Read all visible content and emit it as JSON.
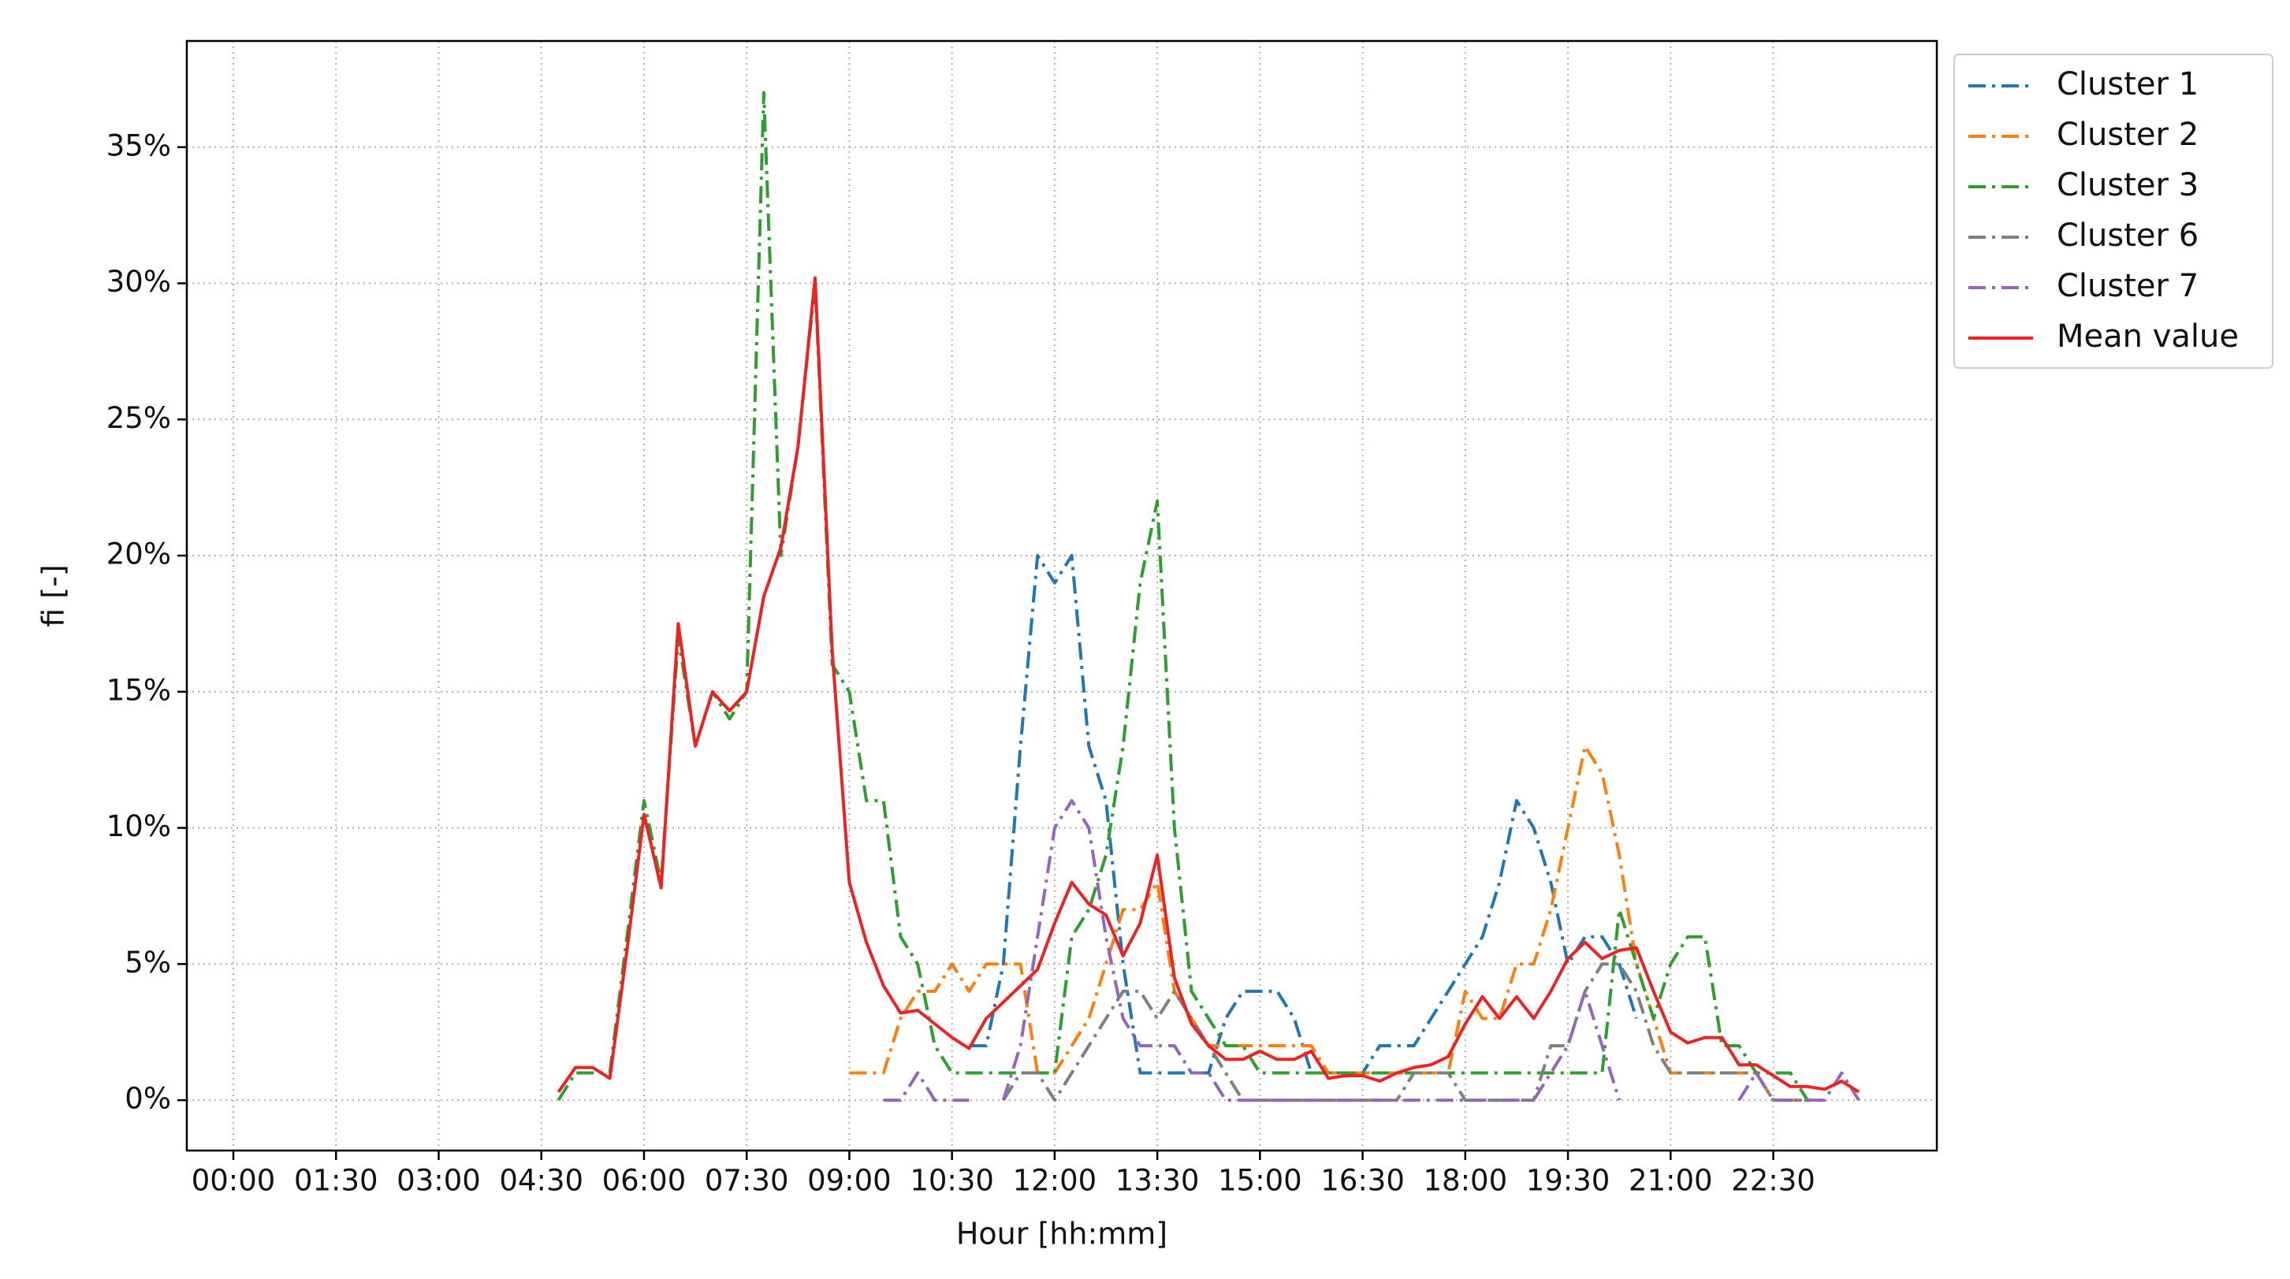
{
  "chart_data": {
    "type": "line",
    "xlabel": "Hour [hh:mm]",
    "ylabel": "fi [-]",
    "x": [
      4.75,
      5,
      5.25,
      5.5,
      5.75,
      6,
      6.25,
      6.5,
      6.75,
      7,
      7.25,
      7.5,
      7.75,
      8,
      8.25,
      8.5,
      8.75,
      9,
      9.25,
      9.5,
      9.75,
      10,
      10.25,
      10.5,
      10.75,
      11,
      11.25,
      11.5,
      11.75,
      12,
      12.25,
      12.5,
      12.75,
      13,
      13.25,
      13.5,
      13.75,
      14,
      14.25,
      14.5,
      14.75,
      15,
      15.25,
      15.5,
      15.75,
      16,
      16.25,
      16.5,
      16.75,
      17,
      17.25,
      17.5,
      17.75,
      18,
      18.25,
      18.5,
      18.75,
      19,
      19.25,
      19.5,
      19.75,
      20,
      20.25,
      20.5,
      20.75,
      21,
      21.25,
      21.5,
      21.75,
      22,
      22.25,
      22.5,
      22.75,
      23,
      23.25,
      23.5,
      23.75
    ],
    "series": [
      {
        "name": "Cluster 1",
        "color": "#1f77b4",
        "linestyle": "dashdot",
        "values": [
          null,
          null,
          null,
          null,
          null,
          null,
          null,
          null,
          null,
          null,
          null,
          null,
          null,
          null,
          null,
          null,
          null,
          null,
          null,
          null,
          null,
          null,
          null,
          null,
          2,
          2,
          5,
          13,
          20,
          19,
          20,
          13,
          11,
          5,
          1,
          1,
          1,
          1,
          1,
          3,
          4,
          4,
          4,
          3,
          1,
          1,
          1,
          1,
          2,
          2,
          2,
          3,
          4,
          5,
          6,
          8,
          11,
          10,
          8,
          5,
          6,
          6,
          5,
          3,
          null,
          null,
          null,
          null,
          null,
          null,
          null,
          null,
          null,
          null,
          null,
          null,
          null
        ]
      },
      {
        "name": "Cluster 2",
        "color": "#ff7f0e",
        "linestyle": "dashdot",
        "values": [
          null,
          null,
          null,
          null,
          null,
          null,
          null,
          null,
          null,
          null,
          null,
          null,
          null,
          null,
          null,
          null,
          null,
          1,
          1,
          1,
          3,
          4,
          4,
          5,
          4,
          5,
          5,
          5,
          1,
          1,
          2,
          3,
          5,
          7,
          7,
          8,
          4,
          3,
          2,
          2,
          2,
          2,
          2,
          2,
          2,
          1,
          1,
          1,
          1,
          1,
          1,
          1,
          1,
          4,
          3,
          3,
          5,
          5,
          7,
          10,
          13,
          12,
          9,
          5,
          3,
          1,
          1,
          1,
          1,
          1,
          1,
          0,
          0,
          0,
          null,
          null,
          null
        ]
      },
      {
        "name": "Cluster 3",
        "color": "#2ca02c",
        "linestyle": "dashdot",
        "values": [
          0,
          1,
          1,
          1,
          6,
          11,
          8,
          17,
          13,
          15,
          14,
          15,
          37,
          20,
          24,
          30,
          16,
          15,
          11,
          11,
          6,
          5,
          2,
          1,
          1,
          1,
          1,
          1,
          1,
          1,
          6,
          7,
          9,
          13,
          19,
          22,
          10,
          4,
          3,
          2,
          2,
          1,
          1,
          1,
          1,
          1,
          1,
          1,
          1,
          1,
          1,
          1,
          1,
          1,
          1,
          1,
          1,
          1,
          1,
          1,
          1,
          1,
          7,
          5,
          3,
          5,
          6,
          6,
          2,
          2,
          1,
          1,
          1,
          0,
          0,
          null,
          null
        ]
      },
      {
        "name": "Cluster 6",
        "color": "#7f7f7f",
        "linestyle": "dashdot",
        "values": [
          null,
          null,
          null,
          null,
          null,
          null,
          null,
          null,
          null,
          null,
          null,
          null,
          null,
          null,
          null,
          null,
          null,
          null,
          null,
          null,
          null,
          null,
          null,
          null,
          null,
          null,
          0,
          1,
          1,
          0,
          1,
          2,
          3,
          4,
          4,
          3,
          4,
          3,
          2,
          1,
          0,
          0,
          0,
          0,
          0,
          0,
          0,
          0,
          0,
          0,
          1,
          1,
          1,
          0,
          0,
          0,
          0,
          0,
          2,
          2,
          4,
          5,
          5,
          4,
          2,
          1,
          1,
          1,
          1,
          1,
          1,
          0,
          0,
          0,
          null,
          null,
          null
        ]
      },
      {
        "name": "Cluster 7",
        "color": "#9467bd",
        "linestyle": "dashdot",
        "values": [
          null,
          null,
          null,
          null,
          null,
          null,
          null,
          null,
          null,
          null,
          null,
          null,
          null,
          null,
          null,
          null,
          null,
          null,
          null,
          0,
          0,
          1,
          0,
          0,
          0,
          null,
          0,
          2,
          6,
          10,
          11,
          10,
          6,
          3,
          2,
          2,
          2,
          1,
          1,
          0,
          0,
          0,
          0,
          0,
          0,
          0,
          0,
          0,
          0,
          0,
          0,
          0,
          0,
          0,
          0,
          0,
          0,
          0,
          1,
          2,
          4,
          2,
          0,
          null,
          null,
          null,
          null,
          null,
          null,
          0,
          1,
          0,
          0,
          0,
          0,
          1,
          0
        ]
      },
      {
        "name": "Mean value",
        "color": "#ee2222",
        "linestyle": "solid",
        "values": [
          0.3,
          1.2,
          1.2,
          0.8,
          5.5,
          10.5,
          7.8,
          17.5,
          13.0,
          15.0,
          14.3,
          15.0,
          18.5,
          20.3,
          24.0,
          30.2,
          16.5,
          8.0,
          5.8,
          4.2,
          3.2,
          3.3,
          2.8,
          2.3,
          1.9,
          3.0,
          3.6,
          4.2,
          4.8,
          6.5,
          8.0,
          7.2,
          6.8,
          5.3,
          6.5,
          9.0,
          4.5,
          2.8,
          2.0,
          1.5,
          1.5,
          1.8,
          1.5,
          1.5,
          1.8,
          0.8,
          0.9,
          0.9,
          0.7,
          1.0,
          1.2,
          1.3,
          1.6,
          2.8,
          3.8,
          3.0,
          3.8,
          3.0,
          4.0,
          5.2,
          5.8,
          5.2,
          5.5,
          5.6,
          4.0,
          2.5,
          2.1,
          2.3,
          2.3,
          1.3,
          1.3,
          0.9,
          0.5,
          0.5,
          0.4,
          0.7,
          0.3
        ]
      }
    ],
    "xlim": [
      -0.68,
      24.89
    ],
    "xticks": [
      {
        "value": 0,
        "label": "00:00"
      },
      {
        "value": 1.5,
        "label": "01:30"
      },
      {
        "value": 3,
        "label": "03:00"
      },
      {
        "value": 4.5,
        "label": "04:30"
      },
      {
        "value": 6,
        "label": "06:00"
      },
      {
        "value": 7.5,
        "label": "07:30"
      },
      {
        "value": 9,
        "label": "09:00"
      },
      {
        "value": 10.5,
        "label": "10:30"
      },
      {
        "value": 12,
        "label": "12:00"
      },
      {
        "value": 13.5,
        "label": "13:30"
      },
      {
        "value": 15,
        "label": "15:00"
      },
      {
        "value": 16.5,
        "label": "16:30"
      },
      {
        "value": 18,
        "label": "18:00"
      },
      {
        "value": 19.5,
        "label": "19:30"
      },
      {
        "value": 21,
        "label": "21:00"
      },
      {
        "value": 22.5,
        "label": "22:30"
      }
    ],
    "ylim": [
      -1.85,
      38.9
    ],
    "yticks": [
      {
        "value": 0,
        "label": "0%"
      },
      {
        "value": 5,
        "label": "5%"
      },
      {
        "value": 10,
        "label": "10%"
      },
      {
        "value": 15,
        "label": "15%"
      },
      {
        "value": 20,
        "label": "20%"
      },
      {
        "value": 25,
        "label": "25%"
      },
      {
        "value": 30,
        "label": "30%"
      },
      {
        "value": 35,
        "label": "35%"
      }
    ],
    "grid": true,
    "legend": "outside-upper-right"
  }
}
